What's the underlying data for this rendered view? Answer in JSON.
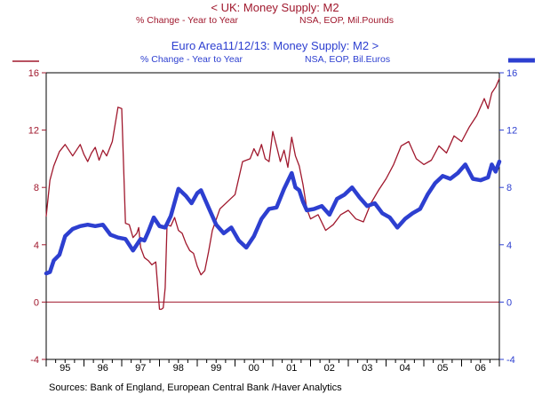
{
  "header": {
    "uk_title": "<  UK: Money Supply: M2",
    "uk_sub_left": "% Change - Year to Year",
    "uk_sub_right": "NSA, EOP, Mil.Pounds",
    "ea_title": "Euro Area11/12/13: Money Supply: M2  >",
    "ea_sub_left": "% Change - Year to Year",
    "ea_sub_right": "NSA, EOP, Bil.Euros"
  },
  "footer": {
    "sources": "Sources:  Bank of England, European Central Bank   /Haver Analytics"
  },
  "colors": {
    "uk": "#a0182d",
    "euro": "#2d3fd0",
    "zero_line": "#a0182d",
    "axis": "#000000"
  },
  "chart_data": {
    "type": "line",
    "title": "UK: Money Supply: M2 vs Euro Area11/12/13: Money Supply: M2",
    "x_tick_labels": [
      "95",
      "96",
      "97",
      "98",
      "99",
      "00",
      "01",
      "02",
      "03",
      "04",
      "05",
      "06"
    ],
    "xlim": [
      1995.0,
      2007.0
    ],
    "left_axis": {
      "ylim": [
        -4,
        16
      ],
      "ticks": [
        -4,
        0,
        4,
        8,
        12,
        16
      ]
    },
    "right_axis": {
      "ylim": [
        -4,
        16
      ],
      "ticks": [
        -4,
        0,
        4,
        8,
        12,
        16
      ]
    },
    "reference_line": 0,
    "series": [
      {
        "name": "UK: Money Supply: M2 (% Change - Year to Year)",
        "axis": "left",
        "x": [
          1995.0,
          1995.1,
          1995.2,
          1995.35,
          1995.5,
          1995.7,
          1995.9,
          1996.0,
          1996.1,
          1996.2,
          1996.3,
          1996.4,
          1996.5,
          1996.6,
          1996.75,
          1996.9,
          1997.0,
          1997.1,
          1997.2,
          1997.3,
          1997.4,
          1997.45,
          1997.5,
          1997.6,
          1997.7,
          1997.8,
          1997.9,
          1998.0,
          1998.05,
          1998.1,
          1998.15,
          1998.2,
          1998.3,
          1998.4,
          1998.5,
          1998.6,
          1998.7,
          1998.8,
          1998.9,
          1999.0,
          1999.1,
          1999.2,
          1999.3,
          1999.4,
          1999.6,
          1999.8,
          2000.0,
          2000.2,
          2000.4,
          2000.5,
          2000.6,
          2000.7,
          2000.8,
          2000.9,
          2001.0,
          2001.1,
          2001.2,
          2001.3,
          2001.4,
          2001.5,
          2001.6,
          2001.7,
          2001.8,
          2001.9,
          2002.0,
          2002.2,
          2002.4,
          2002.6,
          2002.8,
          2003.0,
          2003.2,
          2003.4,
          2003.6,
          2003.8,
          2004.0,
          2004.2,
          2004.4,
          2004.6,
          2004.8,
          2005.0,
          2005.2,
          2005.4,
          2005.6,
          2005.8,
          2006.0,
          2006.2,
          2006.4,
          2006.6,
          2006.7,
          2006.8,
          2006.9,
          2007.0
        ],
        "y": [
          6,
          8.5,
          9.5,
          10.5,
          11,
          10.2,
          11,
          10.3,
          9.8,
          10.4,
          10.8,
          9.9,
          10.6,
          10.2,
          11.2,
          13.6,
          13.5,
          5.5,
          5.4,
          4.5,
          4.8,
          5.2,
          3.8,
          3.1,
          2.9,
          2.6,
          2.8,
          -0.5,
          -0.5,
          -0.4,
          1.0,
          5.4,
          5.3,
          5.9,
          5.0,
          4.8,
          4.1,
          3.6,
          3.4,
          2.5,
          1.9,
          2.2,
          3.5,
          5.0,
          6.5,
          7.0,
          7.5,
          9.8,
          10.0,
          10.7,
          10.2,
          11.0,
          10.0,
          9.8,
          11.9,
          10.9,
          9.8,
          10.6,
          9.4,
          11.5,
          10.2,
          9.5,
          8.2,
          6.5,
          5.8,
          6.1,
          5.0,
          5.4,
          6.1,
          6.4,
          5.8,
          5.6,
          6.9,
          7.8,
          8.6,
          9.6,
          10.9,
          11.2,
          10.0,
          9.6,
          9.9,
          10.9,
          10.4,
          11.6,
          11.2,
          12.2,
          13.0,
          14.2,
          13.5,
          14.6,
          15.0,
          15.6
        ]
      },
      {
        "name": "Euro Area11/12/13: Money Supply: M2 (% Change - Year to Year)",
        "axis": "right",
        "x": [
          1995.0,
          1995.1,
          1995.2,
          1995.35,
          1995.5,
          1995.7,
          1995.9,
          1996.1,
          1996.3,
          1996.5,
          1996.7,
          1996.9,
          1997.1,
          1997.3,
          1997.5,
          1997.6,
          1997.7,
          1997.85,
          1998.0,
          1998.15,
          1998.3,
          1998.5,
          1998.7,
          1998.85,
          1999.0,
          1999.1,
          1999.3,
          1999.5,
          1999.7,
          1999.9,
          2000.1,
          2000.3,
          2000.5,
          2000.7,
          2000.9,
          2001.1,
          2001.3,
          2001.5,
          2001.6,
          2001.7,
          2001.8,
          2001.9,
          2002.1,
          2002.3,
          2002.5,
          2002.7,
          2002.9,
          2003.1,
          2003.3,
          2003.5,
          2003.7,
          2003.9,
          2004.1,
          2004.3,
          2004.5,
          2004.7,
          2004.9,
          2005.1,
          2005.3,
          2005.5,
          2005.7,
          2005.9,
          2006.1,
          2006.3,
          2006.5,
          2006.7,
          2006.8,
          2006.9,
          2007.0
        ],
        "y": [
          2.0,
          2.1,
          2.9,
          3.3,
          4.6,
          5.1,
          5.3,
          5.4,
          5.3,
          5.4,
          4.7,
          4.5,
          4.4,
          3.6,
          4.4,
          4.3,
          4.9,
          5.9,
          5.3,
          5.2,
          6.0,
          7.9,
          7.4,
          6.9,
          7.6,
          7.8,
          6.6,
          5.4,
          4.8,
          5.2,
          4.3,
          3.8,
          4.6,
          5.8,
          6.5,
          6.6,
          7.9,
          9.0,
          8.0,
          7.8,
          7.0,
          6.4,
          6.5,
          6.7,
          6.1,
          7.2,
          7.5,
          8.0,
          7.3,
          6.7,
          6.9,
          6.2,
          5.9,
          5.2,
          5.8,
          6.2,
          6.5,
          7.5,
          8.3,
          8.8,
          8.6,
          9.0,
          9.6,
          8.6,
          8.5,
          8.7,
          9.6,
          9.1,
          9.8
        ]
      }
    ]
  }
}
